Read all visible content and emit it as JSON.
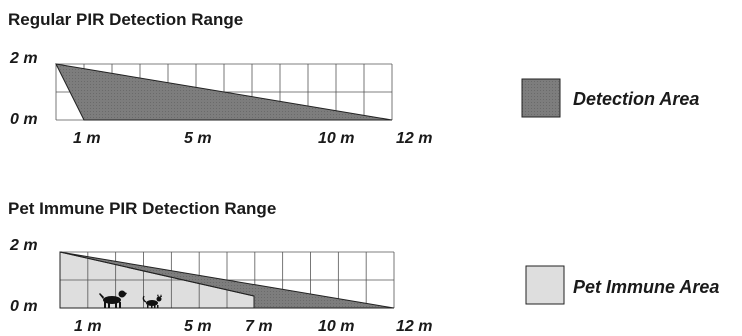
{
  "colors": {
    "detection": "#7d7d7d",
    "pet_immune": "#dedede",
    "grid": "#555555",
    "outline": "#222222"
  },
  "diagrams": [
    {
      "title": "Regular PIR Detection Range",
      "y_labels": [
        "2 m",
        "0 m"
      ],
      "x_labels": [
        "1 m",
        "5 m",
        "10 m",
        "12 m"
      ]
    },
    {
      "title": "Pet Immune PIR Detection Range",
      "y_labels": [
        "2 m",
        "0 m"
      ],
      "x_labels": [
        "1 m",
        "5 m",
        "7 m",
        "10 m",
        "12 m"
      ]
    }
  ],
  "legend": {
    "detection_label": "Detection Area",
    "pet_immune_label": "Pet Immune Area"
  },
  "icons": [
    "dog-icon",
    "cat-icon"
  ]
}
